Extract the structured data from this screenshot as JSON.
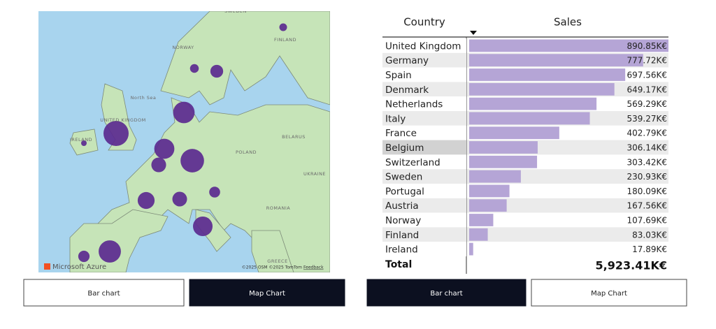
{
  "map": {
    "labels": [
      "SWEDEN",
      "NORWAY",
      "FINLAND",
      "North Sea",
      "UNITED KINGDOM",
      "IRELAND",
      "BELARUS",
      "POLAND",
      "UKRAINE",
      "ROMANIA",
      "GREECE"
    ],
    "logo": "Microsoft Azure",
    "attribution": "©2025 OSM ©2025 TomTom",
    "feedback": "Feedback"
  },
  "left_buttons": [
    "Bar chart",
    "Map Chart"
  ],
  "table": {
    "headers": [
      "Country",
      "Sales"
    ],
    "rows": [
      {
        "country": "United Kingdom",
        "sales": 890.85,
        "sales_label": "890.85K€"
      },
      {
        "country": "Germany",
        "sales": 777.72,
        "sales_label": "777.72K€"
      },
      {
        "country": "Spain",
        "sales": 697.56,
        "sales_label": "697.56K€"
      },
      {
        "country": "Denmark",
        "sales": 649.17,
        "sales_label": "649.17K€"
      },
      {
        "country": "Netherlands",
        "sales": 569.29,
        "sales_label": "569.29K€"
      },
      {
        "country": "Italy",
        "sales": 539.27,
        "sales_label": "539.27K€"
      },
      {
        "country": "France",
        "sales": 402.79,
        "sales_label": "402.79K€"
      },
      {
        "country": "Belgium",
        "sales": 306.14,
        "sales_label": "306.14K€"
      },
      {
        "country": "Switzerland",
        "sales": 303.42,
        "sales_label": "303.42K€"
      },
      {
        "country": "Sweden",
        "sales": 230.93,
        "sales_label": "230.93K€"
      },
      {
        "country": "Portugal",
        "sales": 180.09,
        "sales_label": "180.09K€"
      },
      {
        "country": "Austria",
        "sales": 167.56,
        "sales_label": "167.56K€"
      },
      {
        "country": "Norway",
        "sales": 107.69,
        "sales_label": "107.69K€"
      },
      {
        "country": "Finland",
        "sales": 83.03,
        "sales_label": "83.03K€"
      },
      {
        "country": "Ireland",
        "sales": 17.89,
        "sales_label": "17.89K€"
      }
    ],
    "total": {
      "label": "Total",
      "value": "5,923.41K€"
    }
  },
  "right_buttons": [
    "Bar chart",
    "Map Chart"
  ]
}
